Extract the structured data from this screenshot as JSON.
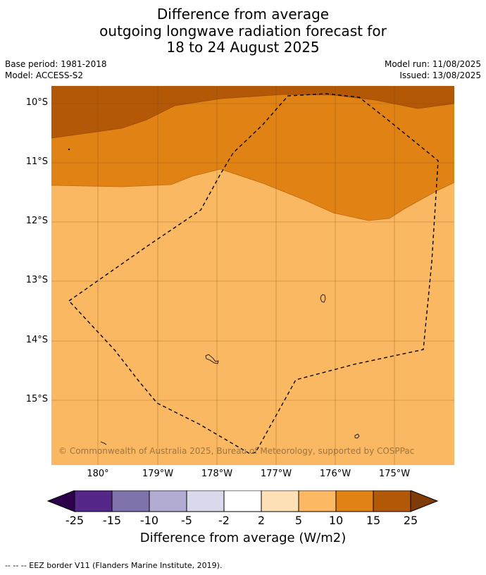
{
  "header": {
    "title_line1": "Difference from average",
    "title_line2": "outgoing longwave radiation forecast for",
    "title_line3": "18 to 24 August 2025",
    "base_period": "Base period: 1981-2018",
    "model": "Model: ACCESS-S2",
    "model_run": "Model run: 11/08/2025",
    "issued": "Issued: 13/08/2025"
  },
  "map": {
    "lat_labels": [
      "10°S",
      "11°S",
      "12°S",
      "13°S",
      "14°S",
      "15°S"
    ],
    "lon_labels": [
      "180°",
      "179°W",
      "178°W",
      "177°W",
      "176°W",
      "175°W"
    ],
    "copyright": "© Commonwealth of Australia 2025, Bureau of Meteorology, supported by COSPPac",
    "colors": {
      "band_5_10": "#fab862",
      "band_10_15": "#e08214",
      "band_15_25": "#b35806",
      "grid": "#7a4a10",
      "eez": "#000000"
    }
  },
  "colorbar": {
    "ticks": [
      "-25",
      "-15",
      "-10",
      "-5",
      "-2",
      "2",
      "5",
      "10",
      "15",
      "25"
    ],
    "colors": [
      "#542788",
      "#8073ac",
      "#b2abd2",
      "#d8daeb",
      "#ffffff",
      "#fee0b6",
      "#fdb863",
      "#e08214",
      "#b35806"
    ],
    "extend_low_color": "#2d004b",
    "extend_high_color": "#7f3b08",
    "label": "Difference from average (W/m2)"
  },
  "footnote": "--  --  -- EEZ border V11 (Flanders Marine Institute, 2019)."
}
